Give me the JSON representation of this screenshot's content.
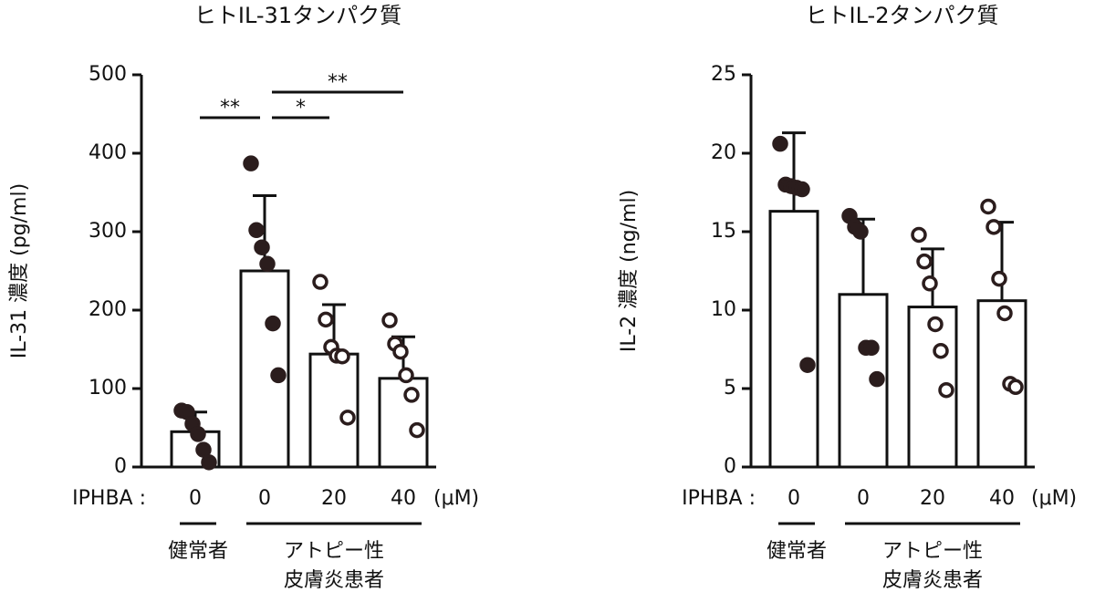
{
  "chart_data": [
    {
      "type": "bar",
      "title": "ヒトIL-31タンパク質",
      "y_label": "IL-31 濃度 (pg/ml)",
      "x_prefix": "IPHBA :",
      "x_unit": "(μM)",
      "categories": [
        "0",
        "0",
        "20",
        "40"
      ],
      "values": [
        45,
        250,
        144,
        113
      ],
      "errors": [
        25,
        96,
        63,
        53
      ],
      "points": [
        [
          72,
          70,
          55,
          42,
          22,
          6
        ],
        [
          387,
          302,
          280,
          259,
          183,
          117
        ],
        [
          236,
          188,
          153,
          142,
          141,
          63
        ],
        [
          187,
          157,
          147,
          117,
          92,
          47
        ]
      ],
      "point_fill": [
        "#2b1d1d",
        "#2b1d1d",
        "#ffffff",
        "#ffffff"
      ],
      "color": "#ffffff",
      "groups": [
        {
          "label": [
            "健常者"
          ],
          "count": 1
        },
        {
          "label": [
            "アトピー性",
            "皮膚炎患者"
          ],
          "count": 3
        }
      ],
      "annotations": [
        {
          "text": "**",
          "between": [
            0,
            1
          ]
        },
        {
          "text": "*",
          "between": [
            1,
            2
          ]
        },
        {
          "text": "**",
          "between": [
            1,
            3
          ]
        }
      ],
      "ylim": [
        0,
        500
      ],
      "yticks": [
        0,
        100,
        200,
        300,
        400,
        500
      ]
    },
    {
      "type": "bar",
      "title": "ヒトIL-2タンパク質",
      "y_label": "IL-2 濃度 (ng/ml)",
      "x_prefix": "IPHBA :",
      "x_unit": "(μM)",
      "categories": [
        "0",
        "0",
        "20",
        "40"
      ],
      "values": [
        16.3,
        11.0,
        10.2,
        10.6
      ],
      "errors": [
        5.0,
        4.8,
        3.7,
        5.0
      ],
      "points": [
        [
          20.6,
          18.0,
          17.9,
          17.8,
          17.7,
          6.5
        ],
        [
          16.0,
          15.3,
          15.0,
          7.6,
          7.6,
          5.6
        ],
        [
          14.8,
          13.1,
          11.7,
          9.1,
          7.4,
          4.9
        ],
        [
          16.6,
          15.3,
          12.0,
          9.8,
          5.3,
          5.1
        ]
      ],
      "point_fill": [
        "#2b1d1d",
        "#2b1d1d",
        "#ffffff",
        "#ffffff"
      ],
      "color": "#ffffff",
      "groups": [
        {
          "label": [
            "健常者"
          ],
          "count": 1
        },
        {
          "label": [
            "アトピー性",
            "皮膚炎患者"
          ],
          "count": 3
        }
      ],
      "ylim": [
        0,
        25
      ],
      "yticks": [
        0,
        5,
        10,
        15,
        20,
        25
      ]
    }
  ]
}
